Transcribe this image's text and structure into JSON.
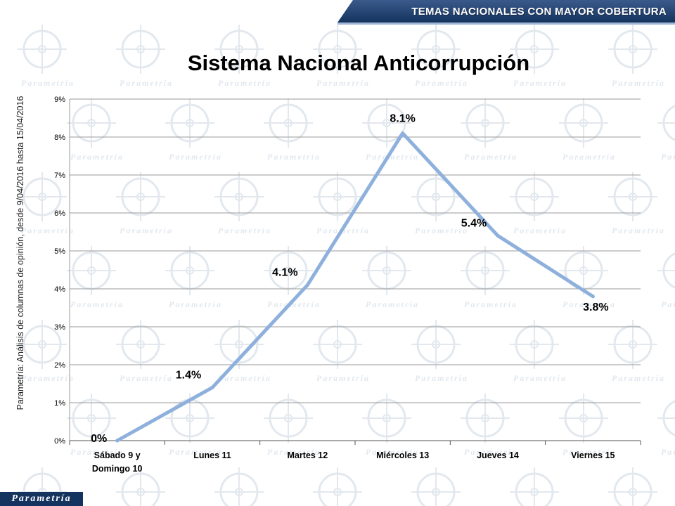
{
  "header": {
    "banner": "TEMAS NACIONALES CON MAYOR COBERTURA"
  },
  "side_note": "Parametría: Análisis de columnas de opinión, desde 9/04/2016 hasta 15/04/2016",
  "logo": "Parametría",
  "watermark_word": "Parametría",
  "colors": {
    "line": "#8eb0dc",
    "grid": "#9a9a9a",
    "banner": "#1d3d6b"
  },
  "chart_data": {
    "type": "line",
    "title": "Sistema Nacional Anticorrupción",
    "categories": [
      "Sábado 9 y Domingo 10",
      "Lunes 11",
      "Martes 12",
      "Miércoles 13",
      "Jueves 14",
      "Viernes 15"
    ],
    "category_lines": [
      [
        "Sábado 9 y",
        "Domingo 10"
      ],
      [
        "Lunes 11"
      ],
      [
        "Martes 12"
      ],
      [
        "Miércoles 13"
      ],
      [
        "Jueves 14"
      ],
      [
        "Viernes 15"
      ]
    ],
    "values": [
      0,
      1.4,
      4.1,
      8.1,
      5.4,
      3.8
    ],
    "data_labels": [
      "0%",
      "1.4%",
      "4.1%",
      "8.1%",
      "5.4%",
      "3.8%"
    ],
    "yticks": [
      "0%",
      "1%",
      "2%",
      "3%",
      "4%",
      "5%",
      "6%",
      "7%",
      "8%",
      "9%"
    ],
    "ylim": [
      0,
      9
    ],
    "grid": true,
    "legend": "none"
  }
}
